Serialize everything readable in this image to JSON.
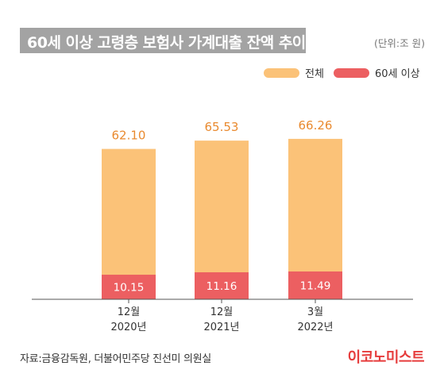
{
  "title": "60세 이상 고령층 보험사 가계대출 잔액 추이",
  "unit": "(단위:조 원)",
  "colors": {
    "total": "#fbc278",
    "senior": "#ec5f61",
    "total_label": "#e98a2f",
    "title_bg": "#a3a3a3"
  },
  "chart_data": {
    "type": "bar",
    "categories": [
      [
        "12월",
        "2020년"
      ],
      [
        "12월",
        "2021년"
      ],
      [
        "3월",
        "2022년"
      ]
    ],
    "series": [
      {
        "name": "전체",
        "values": [
          62.1,
          65.53,
          66.26
        ]
      },
      {
        "name": "60세 이상",
        "values": [
          10.15,
          11.16,
          11.49
        ]
      }
    ],
    "value_labels": {
      "total": [
        "62.10",
        "65.53",
        "66.26"
      ],
      "senior": [
        "10.15",
        "11.16",
        "11.49"
      ]
    },
    "ylim": [
      0,
      100
    ],
    "legend_position": "top-right",
    "grid": false
  },
  "footer": {
    "source": "자료:금융감독원, 더불어민주당 진선미 의원실",
    "logo": "이코노미스트"
  }
}
